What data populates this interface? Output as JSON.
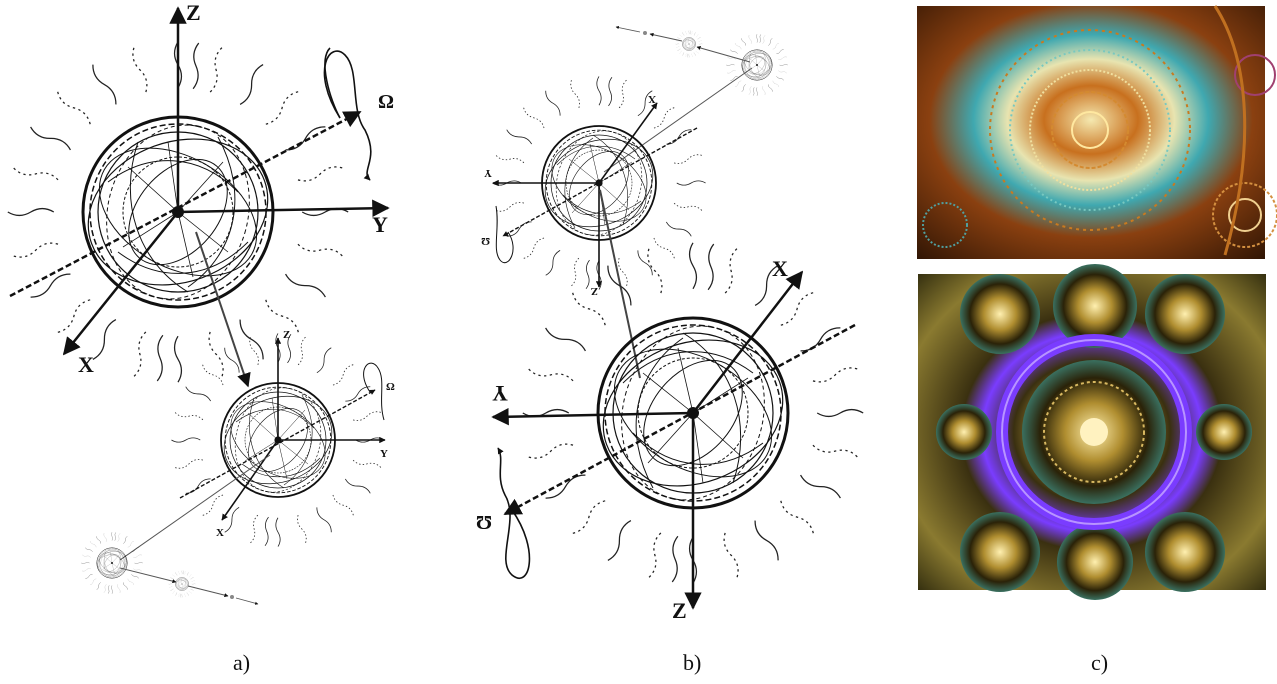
{
  "captions": {
    "a": "a)",
    "b": "b)",
    "c": "c)"
  },
  "axes": {
    "x": "X",
    "y": "Y",
    "z": "Z",
    "omega": "Ω"
  },
  "panel_c": {
    "top_image": {
      "icon": "orange-fractal-mandala-image",
      "colors": [
        "#5a2a08",
        "#c8701e",
        "#3fa8b0",
        "#e8e4b0"
      ]
    },
    "bottom_image": {
      "icon": "golden-fractal-rings-image",
      "colors": [
        "#2a2a08",
        "#c9a640",
        "#7a3cff",
        "#f4e6a0"
      ]
    }
  }
}
